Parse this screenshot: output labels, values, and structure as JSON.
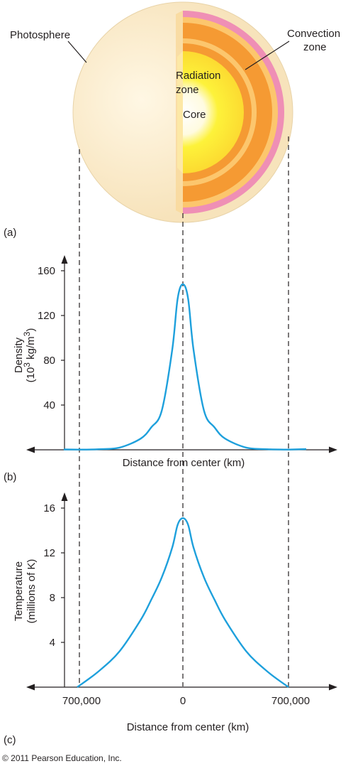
{
  "sun": {
    "photosphere": "Photosphere",
    "convection_line1": "Convection",
    "convection_line2": "zone",
    "radiation_line1": "Radiation",
    "radiation_line2": "zone",
    "core": "Core",
    "panel": "(a)"
  },
  "density": {
    "panel": "(b)",
    "ylabel_line1": "Density",
    "ylabel_line2": "(10",
    "ylabel_sup": "3",
    "ylabel_line2b": " kg/m",
    "ylabel_sup2": "3",
    "ylabel_line2c": ")",
    "xlabel": "Distance from center (km)",
    "yticks": [
      "160",
      "120",
      "80",
      "40"
    ]
  },
  "temperature": {
    "panel": "(c)",
    "ylabel_line1": "Temperature",
    "ylabel_line2": "(millions of K)",
    "xlabel": "Distance from center (km)",
    "yticks": [
      "16",
      "12",
      "8",
      "4"
    ],
    "xticks": [
      "700,000",
      "0",
      "700,000"
    ]
  },
  "copyright": "© 2011 Pearson Education, Inc.",
  "colors": {
    "curve": "#1ea0dc",
    "photosphere": "#fbeccb",
    "pink": "#ef8fb5",
    "orange": "#f59a33",
    "light_orange": "#fcc66d",
    "yellow": "#fdf23a"
  },
  "chart_data": [
    {
      "type": "line",
      "x_unit": "km from center",
      "y_unit": "10^3 kg/m^3",
      "ylim": [
        0,
        170
      ],
      "x": [
        -700000,
        -560000,
        -420000,
        -280000,
        -210000,
        -140000,
        -70000,
        -35000,
        0,
        35000,
        70000,
        140000,
        210000,
        280000,
        420000,
        560000,
        700000
      ],
      "values": [
        0.2,
        0.5,
        2,
        10,
        20,
        35,
        90,
        135,
        148,
        135,
        90,
        35,
        20,
        10,
        2,
        0.5,
        0.2
      ]
    },
    {
      "type": "line",
      "x_unit": "km from center",
      "y_unit": "millions of K",
      "ylim": [
        0,
        17
      ],
      "x": [
        -700000,
        -560000,
        -420000,
        -280000,
        -210000,
        -140000,
        -70000,
        -35000,
        0,
        35000,
        70000,
        140000,
        210000,
        280000,
        420000,
        560000,
        700000
      ],
      "values": [
        0,
        1.4,
        3.2,
        6,
        7.8,
        9.8,
        12.5,
        14.5,
        15.1,
        14.5,
        12.5,
        9.8,
        7.8,
        6,
        3.2,
        1.4,
        0
      ]
    }
  ]
}
